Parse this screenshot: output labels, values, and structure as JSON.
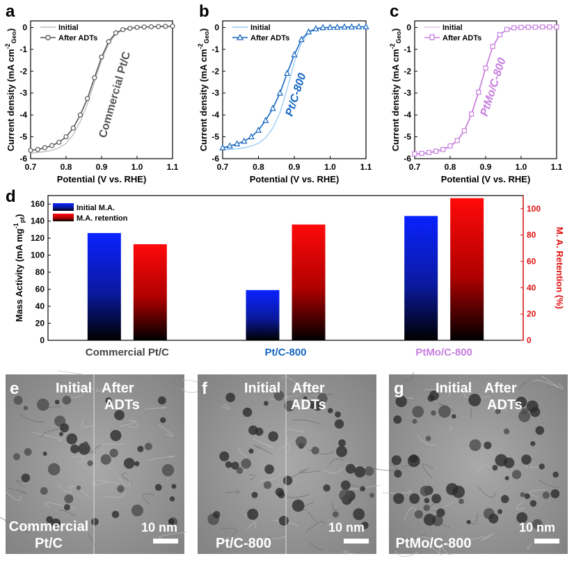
{
  "panel_labels": {
    "a": "a",
    "b": "b",
    "c": "c",
    "d": "d",
    "e": "e",
    "f": "f",
    "g": "g"
  },
  "legend_initial": "Initial",
  "legend_after": "After ADTs",
  "xaxis_label": "Potential (V vs. RHE)",
  "yaxis_label_top": "Current density (mA cm",
  "yaxis_sup": "-2",
  "yaxis_sub": "Geo",
  "yaxis_close": ")",
  "colors": {
    "pt": "#555555",
    "pt_initial": "#bbbbbb",
    "ptc800": "#1565c0",
    "ptc800_initial": "#90caf9",
    "ptmo": "#c77dde",
    "ptmo_initial": "#e1bee7",
    "bar_blue": "#0a22ff",
    "bar_red": "#ff0a0a",
    "retention_axis": "#e01010"
  },
  "chart_data": [
    {
      "type": "line",
      "panel": "a",
      "annotation": "Commercial Pt/C",
      "xlim": [
        0.7,
        1.1
      ],
      "ylim": [
        -6,
        0.3
      ],
      "x_ticks": [
        "0.7",
        "0.8",
        "0.9",
        "1.0",
        "1.1"
      ],
      "y_ticks": [
        "0",
        "-1",
        "-2",
        "-3",
        "-4",
        "-5",
        "-6"
      ],
      "series": [
        {
          "name": "Initial",
          "x": [
            0.7,
            0.72,
            0.74,
            0.76,
            0.78,
            0.8,
            0.82,
            0.84,
            0.86,
            0.88,
            0.9,
            0.92,
            0.94,
            0.96,
            0.98,
            1.0,
            1.02,
            1.04,
            1.06,
            1.08,
            1.1
          ],
          "y": [
            -5.75,
            -5.72,
            -5.68,
            -5.62,
            -5.5,
            -5.3,
            -4.9,
            -4.3,
            -3.5,
            -2.5,
            -1.5,
            -0.75,
            -0.3,
            -0.1,
            -0.03,
            0.0,
            0.02,
            0.03,
            0.04,
            0.05,
            0.05
          ]
        },
        {
          "name": "After ADTs",
          "x": [
            0.7,
            0.72,
            0.74,
            0.76,
            0.78,
            0.8,
            0.82,
            0.84,
            0.86,
            0.88,
            0.9,
            0.92,
            0.94,
            0.96,
            0.98,
            1.0,
            1.02,
            1.04,
            1.06,
            1.08,
            1.1
          ],
          "y": [
            -5.62,
            -5.58,
            -5.5,
            -5.4,
            -5.25,
            -5.0,
            -4.6,
            -4.0,
            -3.25,
            -2.3,
            -1.35,
            -0.65,
            -0.25,
            -0.1,
            -0.04,
            0.0,
            0.02,
            0.03,
            0.04,
            0.05,
            0.06
          ]
        }
      ]
    },
    {
      "type": "line",
      "panel": "b",
      "annotation": "Pt/C-800",
      "xlim": [
        0.7,
        1.1
      ],
      "ylim": [
        -6,
        0.3
      ],
      "x_ticks": [
        "0.7",
        "0.8",
        "0.9",
        "1.0",
        "1.1"
      ],
      "y_ticks": [
        "0",
        "-1",
        "-2",
        "-3",
        "-4",
        "-5",
        "-6"
      ],
      "series": [
        {
          "name": "Initial",
          "x": [
            0.7,
            0.72,
            0.74,
            0.76,
            0.78,
            0.8,
            0.82,
            0.84,
            0.86,
            0.88,
            0.9,
            0.92,
            0.94,
            0.96,
            0.98,
            1.0,
            1.02,
            1.04,
            1.06,
            1.08,
            1.1
          ],
          "y": [
            -5.6,
            -5.58,
            -5.55,
            -5.5,
            -5.42,
            -5.3,
            -5.05,
            -4.6,
            -3.9,
            -2.8,
            -1.6,
            -0.7,
            -0.25,
            -0.08,
            -0.02,
            0.0,
            0.01,
            0.02,
            0.02,
            0.03,
            0.03
          ]
        },
        {
          "name": "After ADTs",
          "x": [
            0.7,
            0.72,
            0.74,
            0.76,
            0.78,
            0.8,
            0.82,
            0.84,
            0.86,
            0.88,
            0.9,
            0.92,
            0.94,
            0.96,
            0.98,
            1.0,
            1.02,
            1.04,
            1.06,
            1.08,
            1.1
          ],
          "y": [
            -5.5,
            -5.42,
            -5.32,
            -5.2,
            -5.0,
            -4.7,
            -4.25,
            -3.7,
            -3.0,
            -2.1,
            -1.25,
            -0.55,
            -0.2,
            -0.06,
            -0.01,
            0.0,
            0.01,
            0.02,
            0.02,
            0.03,
            0.03
          ]
        }
      ]
    },
    {
      "type": "line",
      "panel": "c",
      "annotation": "PtMo/C-800",
      "xlim": [
        0.7,
        1.1
      ],
      "ylim": [
        -6,
        0.3
      ],
      "x_ticks": [
        "0.7",
        "0.8",
        "0.9",
        "1.0",
        "1.1"
      ],
      "y_ticks": [
        "0",
        "-1",
        "-2",
        "-3",
        "-4",
        "-5",
        "-6"
      ],
      "series": [
        {
          "name": "Initial",
          "x": [
            0.7,
            0.72,
            0.74,
            0.76,
            0.78,
            0.8,
            0.82,
            0.84,
            0.86,
            0.88,
            0.9,
            0.92,
            0.94,
            0.96,
            0.98,
            1.0,
            1.02,
            1.04,
            1.06,
            1.08,
            1.1
          ],
          "y": [
            -5.8,
            -5.78,
            -5.74,
            -5.68,
            -5.6,
            -5.45,
            -5.2,
            -4.75,
            -4.0,
            -3.0,
            -1.9,
            -0.9,
            -0.35,
            -0.1,
            -0.03,
            0.0,
            0.01,
            0.01,
            0.02,
            0.02,
            0.02
          ]
        },
        {
          "name": "After ADTs",
          "x": [
            0.7,
            0.72,
            0.74,
            0.76,
            0.78,
            0.8,
            0.82,
            0.84,
            0.86,
            0.88,
            0.9,
            0.92,
            0.94,
            0.96,
            0.98,
            1.0,
            1.02,
            1.04,
            1.06,
            1.08,
            1.1
          ],
          "y": [
            -5.78,
            -5.76,
            -5.72,
            -5.66,
            -5.58,
            -5.42,
            -5.17,
            -4.72,
            -3.96,
            -2.96,
            -1.86,
            -0.87,
            -0.33,
            -0.09,
            -0.02,
            0.0,
            0.01,
            0.01,
            0.02,
            0.02,
            0.02
          ]
        }
      ]
    },
    {
      "type": "bar",
      "panel": "d",
      "categories": [
        "Commercial Pt/C",
        "Pt/C-800",
        "PtMo/C-800"
      ],
      "category_colors": [
        "#444444",
        "#1565c0",
        "#c77dde"
      ],
      "ylabel": "Mass Activity (mA mg",
      "ylabel_sup": "-1",
      "ylabel_sub": "pt",
      "ylabel_close": ")",
      "y2label": "M. A. Retention (%)",
      "ylim": [
        0,
        170
      ],
      "y2lim": [
        0,
        110
      ],
      "y_ticks": [
        "0",
        "20",
        "40",
        "60",
        "80",
        "100",
        "120",
        "140",
        "160"
      ],
      "y2_ticks": [
        "0",
        "20",
        "40",
        "60",
        "80",
        "100"
      ],
      "series": [
        {
          "name": "Initial M.A.",
          "axis": "left",
          "values": [
            126,
            59,
            146
          ]
        },
        {
          "name": "M.A. retention",
          "axis": "right",
          "values": [
            73,
            88,
            108
          ]
        }
      ]
    }
  ],
  "tem": {
    "initial_label": "Initial",
    "after_label_1": "After",
    "after_label_2": "ADTs",
    "scale_label": "10 nm",
    "e_name_1": "Commercial",
    "e_name_2": "Pt/C",
    "f_name": "Pt/C-800",
    "g_name": "PtMo/C-800"
  }
}
